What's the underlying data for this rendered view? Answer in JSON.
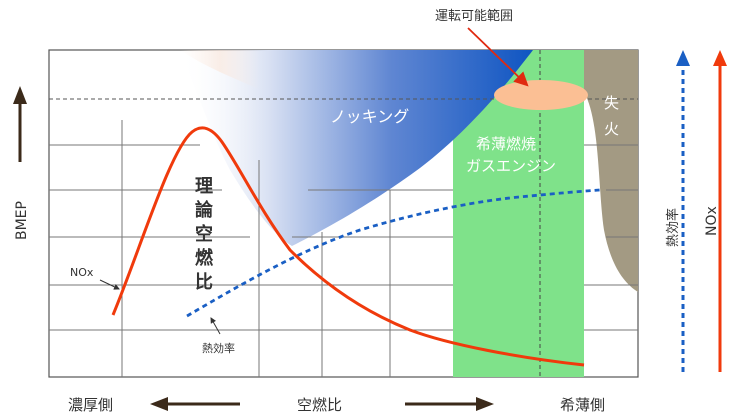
{
  "labels": {
    "operating_range": "運転可能範囲",
    "knocking": "ノッキング",
    "lean_engine_line1": "希薄燃焼",
    "lean_engine_line2": "ガスエンジン",
    "misfire_line1": "失",
    "misfire_line2": "火",
    "stoich_chars": [
      "理",
      "論",
      "空",
      "燃",
      "比"
    ],
    "nox_curve": "NOx",
    "efficiency_curve": "熱効率",
    "y_axis": "BMEP",
    "x_axis": "空燃比",
    "x_rich": "濃厚側",
    "x_lean": "希薄側",
    "legend_efficiency": "熱効率",
    "legend_nox": "NOx"
  },
  "colors": {
    "nox_curve": "#f03a0c",
    "efficiency_curve": "#1a5fc4",
    "lean_zone": "#7fe28a",
    "knocking_zone": "#1d5fc2",
    "misfire_zone": "#a39a83",
    "operating_oval": "#fbbf94",
    "grid": "#777777",
    "axis_arrow": "#3b2a1a"
  }
}
